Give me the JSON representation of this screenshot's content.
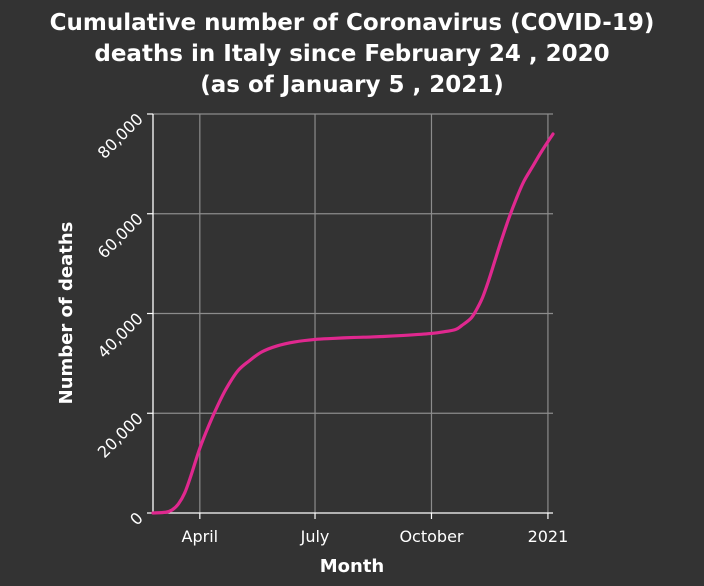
{
  "chart_data": {
    "type": "line",
    "title_lines": [
      "Cumulative number of Coronavirus (COVID-19)",
      "deaths in Italy since February 24 , 2020",
      "(as of January 5 , 2021)"
    ],
    "xlabel": "Month",
    "ylabel": "Number of deaths",
    "x_ticks": [
      {
        "date": "2020-04-01",
        "label": "April"
      },
      {
        "date": "2020-07-01",
        "label": "July"
      },
      {
        "date": "2020-10-01",
        "label": "October"
      },
      {
        "date": "2021-01-01",
        "label": "2021"
      }
    ],
    "y_ticks": [
      {
        "value": 0,
        "label": "0"
      },
      {
        "value": 20000,
        "label": "20,000"
      },
      {
        "value": 40000,
        "label": "40,000"
      },
      {
        "value": 60000,
        "label": "60,000"
      },
      {
        "value": 80000,
        "label": "80,000"
      }
    ],
    "xlim": [
      "2020-02-24",
      "2021-01-05"
    ],
    "ylim": [
      0,
      80000
    ],
    "grid": true,
    "colors": {
      "background": "#333333",
      "line": "#e0288f",
      "grid": "#8c8c8c",
      "axis": "#ffffff",
      "text": "#ffffff"
    },
    "series": [
      {
        "points": [
          [
            "2020-02-24",
            0
          ],
          [
            "2020-03-05",
            150
          ],
          [
            "2020-03-10",
            600
          ],
          [
            "2020-03-15",
            1800
          ],
          [
            "2020-03-20",
            4000
          ],
          [
            "2020-03-25",
            7500
          ],
          [
            "2020-04-01",
            13000
          ],
          [
            "2020-04-08",
            17500
          ],
          [
            "2020-04-15",
            21500
          ],
          [
            "2020-04-22",
            25000
          ],
          [
            "2020-05-01",
            28500
          ],
          [
            "2020-05-10",
            30500
          ],
          [
            "2020-05-20",
            32300
          ],
          [
            "2020-06-01",
            33500
          ],
          [
            "2020-06-15",
            34300
          ],
          [
            "2020-07-01",
            34800
          ],
          [
            "2020-07-15",
            35000
          ],
          [
            "2020-08-01",
            35200
          ],
          [
            "2020-08-15",
            35300
          ],
          [
            "2020-09-01",
            35500
          ],
          [
            "2020-09-15",
            35700
          ],
          [
            "2020-10-01",
            36000
          ],
          [
            "2020-10-10",
            36300
          ],
          [
            "2020-10-20",
            36800
          ],
          [
            "2020-10-25",
            37600
          ],
          [
            "2020-11-01",
            39000
          ],
          [
            "2020-11-05",
            40500
          ],
          [
            "2020-11-10",
            43000
          ],
          [
            "2020-11-15",
            46500
          ],
          [
            "2020-11-20",
            50500
          ],
          [
            "2020-11-25",
            54500
          ],
          [
            "2020-12-01",
            59000
          ],
          [
            "2020-12-07",
            63000
          ],
          [
            "2020-12-13",
            66500
          ],
          [
            "2020-12-20",
            69500
          ],
          [
            "2020-12-27",
            72500
          ],
          [
            "2021-01-05",
            76000
          ]
        ]
      }
    ]
  }
}
